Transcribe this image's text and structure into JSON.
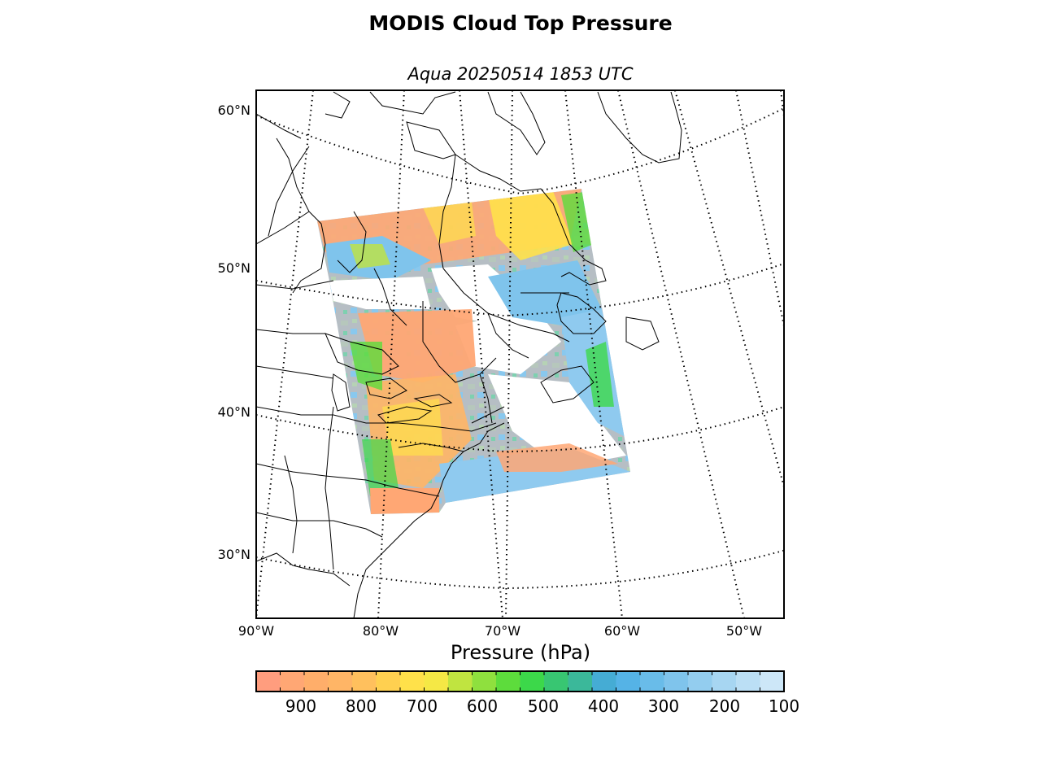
{
  "title": "MODIS Cloud Top Pressure",
  "subtitle": "Aqua 20250514 1853 UTC",
  "lat_labels": [
    "60°N",
    "50°N",
    "40°N",
    "30°N"
  ],
  "lon_labels": [
    "90°W",
    "80°W",
    "70°W",
    "60°W",
    "50°W"
  ],
  "colorbar": {
    "label": "Pressure (hPa)",
    "ticks": [
      "900",
      "800",
      "700",
      "600",
      "500",
      "400",
      "300",
      "200",
      "100"
    ],
    "range": [
      1000,
      100
    ],
    "colors": [
      "#ff9d7e",
      "#ffa774",
      "#ffae6a",
      "#ffb566",
      "#ffc05d",
      "#ffd050",
      "#ffe14a",
      "#f5e845",
      "#c0e440",
      "#8fe03e",
      "#5ddc3c",
      "#3cd84a",
      "#38c672",
      "#3bb89a",
      "#45acd4",
      "#55b3e6",
      "#69bce9",
      "#7fc4ec",
      "#93cdef",
      "#a7d6f2",
      "#bbdff5",
      "#cde7f8"
    ]
  },
  "icons": {
    "map": "map-of-northeast-north-america",
    "swath": "cloud-pressure-swath"
  }
}
